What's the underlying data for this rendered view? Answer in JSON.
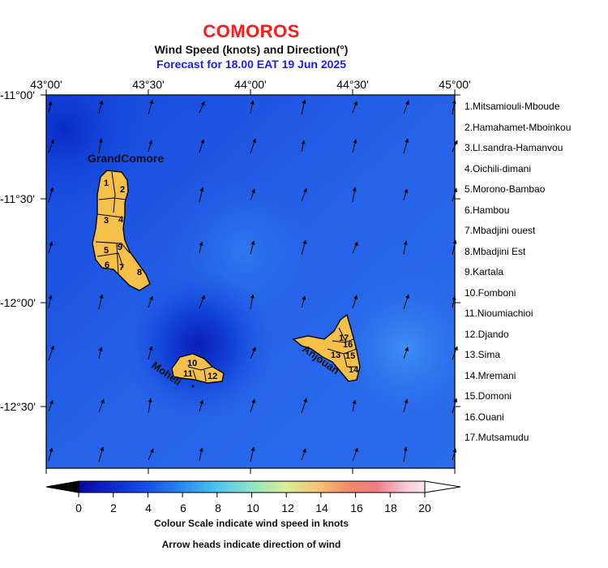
{
  "header": {
    "country": "COMOROS",
    "subtitle": "Wind Speed (knots) and Direction(°)",
    "forecast": "Forecast for  18.00 EAT 19 Jun 2025"
  },
  "axes": {
    "lon_labels": [
      "43°00'",
      "43°30'",
      "44°00'",
      "44°30'",
      "45°00'"
    ],
    "lat_labels": [
      "-11°00'",
      "-11°30'",
      "-12°00'",
      "-12°30'"
    ]
  },
  "islands": {
    "grand_comore": "GrandComore",
    "moheli": "Moheli",
    "anjouan": "Anjouan"
  },
  "region_numbers": [
    "1",
    "2",
    "3",
    "4",
    "5",
    "6",
    "7",
    "8",
    "9",
    "10",
    "11",
    "12",
    "13",
    "14",
    "15",
    "16",
    "17"
  ],
  "regions": [
    "1.Mitsamiouli-Mboude",
    "2.Hamahamet-Mboinkou",
    "3.Ll.sandra-Hamanvou",
    "4.Oichili-dimani",
    "5.Morono-Bambao",
    "6.Hambou",
    "7.Mbadjini ouest",
    "8.Mbadjini Est",
    "9.Kartala",
    "10.Fomboni",
    "11.Nioumiachioi",
    "12.Djando",
    "13.Sima",
    "14.Mremani",
    "15.Domoni",
    "16.Ouani",
    "17.Mutsamudu"
  ],
  "colorbar": {
    "ticks": [
      "0",
      "2",
      "4",
      "6",
      "8",
      "10",
      "12",
      "14",
      "16",
      "18",
      "20"
    ],
    "colors": [
      "#000000",
      "#0808a0",
      "#0f36e0",
      "#1e6cf0",
      "#2ea8f5",
      "#5fd8e8",
      "#b0ee9a",
      "#f4e58a",
      "#f7a370",
      "#f06a6a",
      "#f5aab8",
      "#fbe0ea",
      "#ffffff"
    ],
    "caption1": "Colour Scale indicate wind speed in knots",
    "caption2": "Arrow heads indicate direction of wind"
  },
  "colors": {
    "title_red": "#ff1a1a",
    "forecast_blue": "#1a1aff",
    "land": "#f5c04a",
    "sea_low": "#0a2fd8",
    "sea_high": "#3a86f2"
  }
}
